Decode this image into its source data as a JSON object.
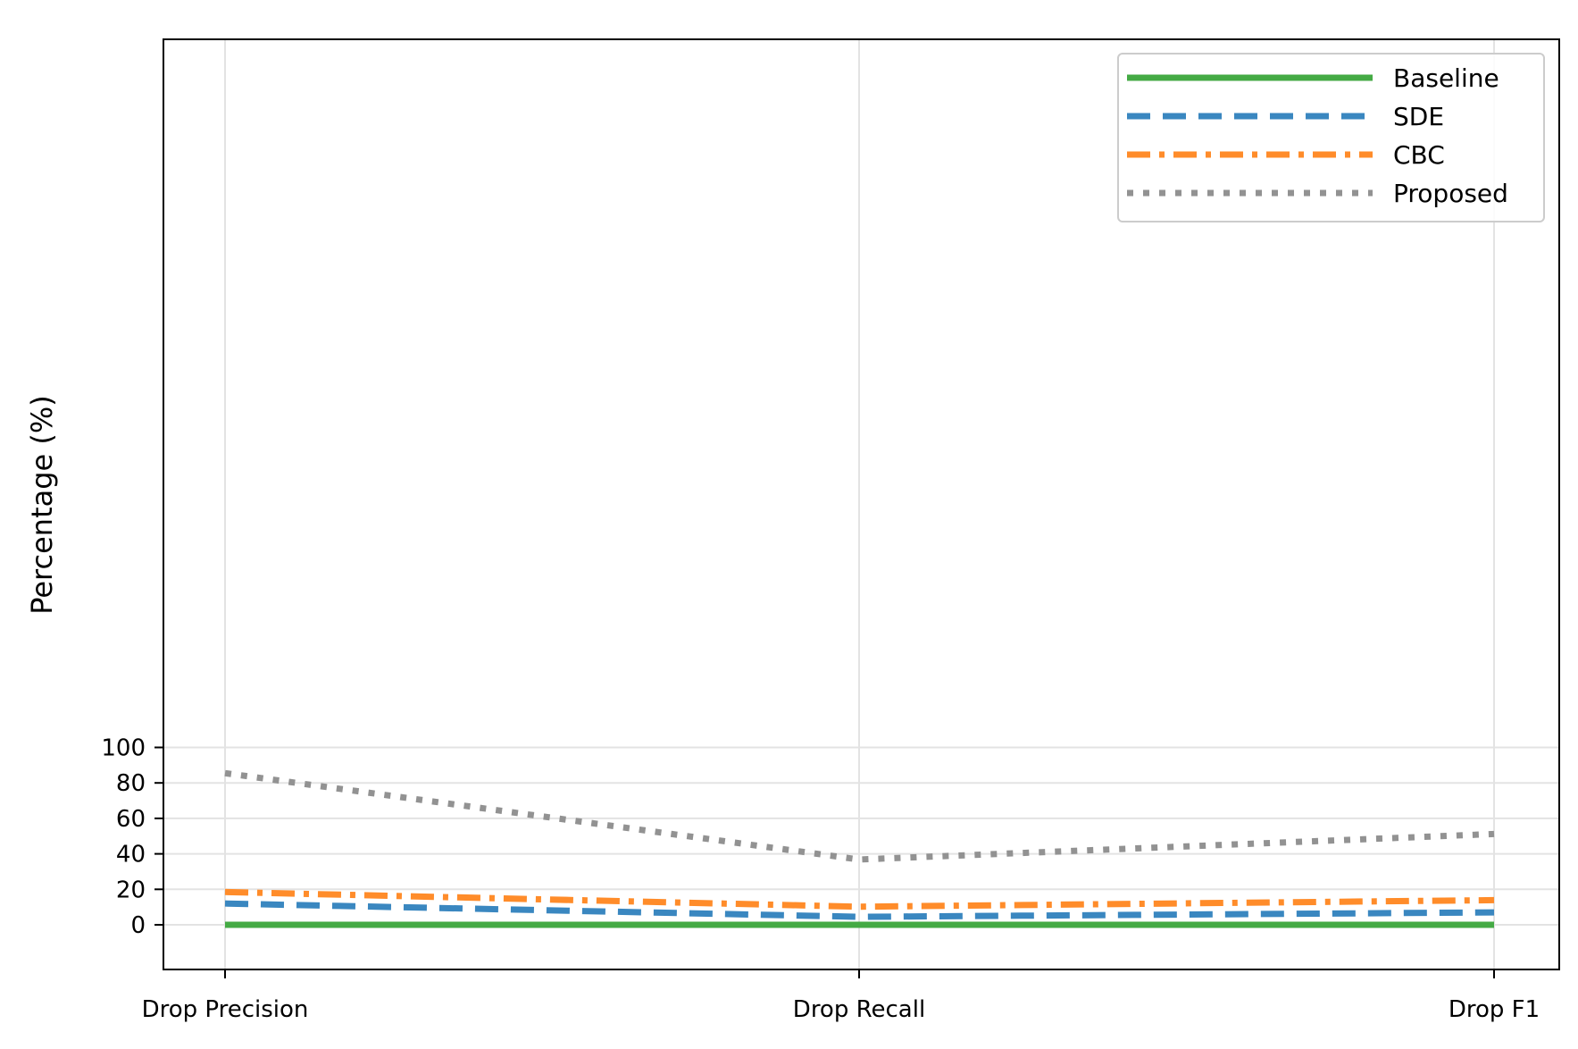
{
  "chart_data": {
    "type": "line",
    "categories": [
      "Drop Precision",
      "Drop Recall",
      "Drop F1"
    ],
    "ylabel": "Percentage (%)",
    "ylim": [
      -5,
      100
    ],
    "yticks": [
      0,
      20,
      40,
      60,
      80,
      100
    ],
    "grid": true,
    "legend_position": "top-right",
    "series": [
      {
        "name": "Baseline",
        "values": [
          0,
          0,
          0
        ],
        "color": "#44aa44",
        "style": "solid"
      },
      {
        "name": "SDE",
        "values": [
          12.0,
          4.5,
          7.0
        ],
        "color": "#3a87c0",
        "style": "dashed"
      },
      {
        "name": "CBC",
        "values": [
          18.5,
          10.2,
          13.9
        ],
        "color": "#ff8c2a",
        "style": "dashdot"
      },
      {
        "name": "Proposed",
        "values": [
          85.5,
          36.8,
          51.2
        ],
        "color": "#929292",
        "style": "dotted"
      }
    ]
  }
}
